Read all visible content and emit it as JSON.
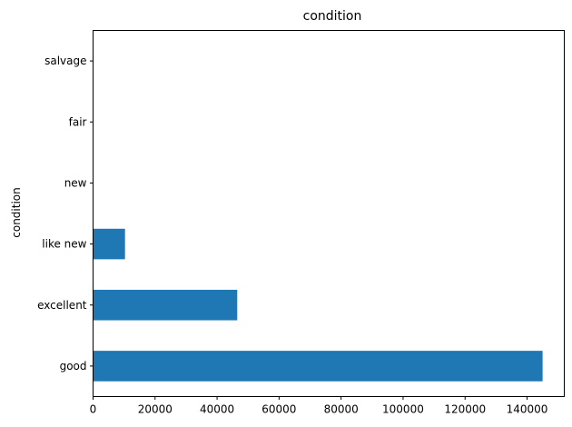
{
  "chart_data": {
    "type": "bar",
    "orientation": "horizontal",
    "title": "condition",
    "xlabel": "",
    "ylabel": "condition",
    "categories": [
      "good",
      "excellent",
      "like new",
      "new",
      "fair",
      "salvage"
    ],
    "values": [
      145000,
      46500,
      10300,
      0,
      0,
      0
    ],
    "xlim": [
      0,
      152000
    ],
    "xticks": [
      0,
      20000,
      40000,
      60000,
      80000,
      100000,
      120000,
      140000
    ],
    "bar_color": "#1f77b4",
    "grid": false,
    "legend": "none"
  }
}
